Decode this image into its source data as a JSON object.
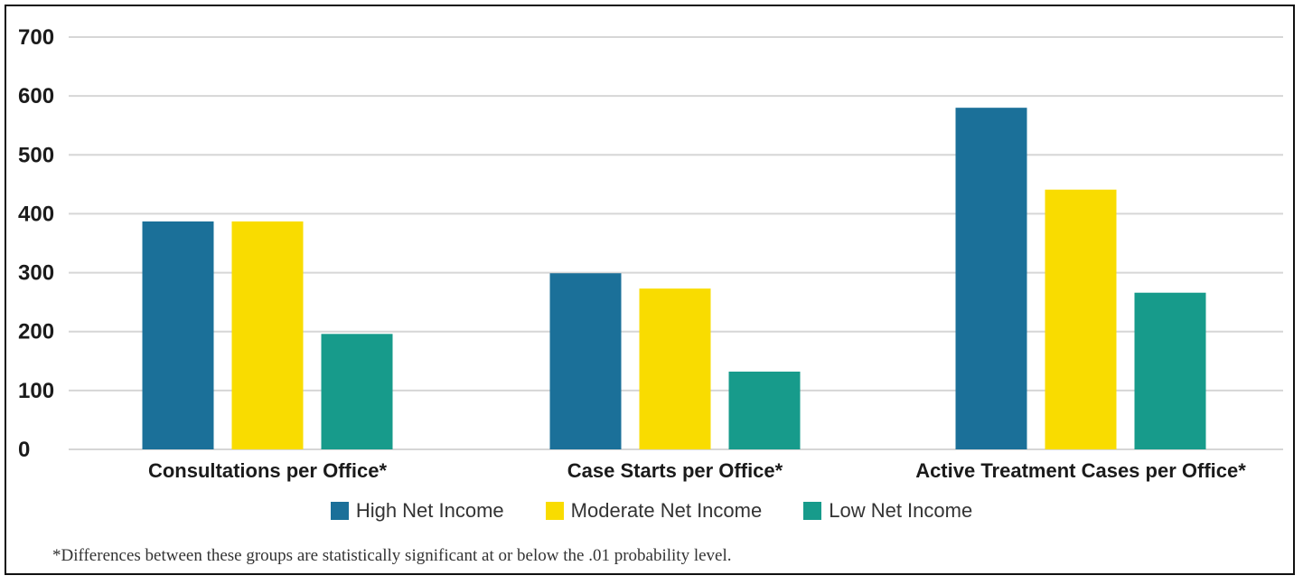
{
  "chart_data": {
    "type": "bar",
    "categories": [
      "Consultations per Office*",
      "Case Starts per Office*",
      "Active Treatment Cases per Office*"
    ],
    "series": [
      {
        "name": "High Net Income",
        "color": "#1b7099",
        "values": [
          387,
          299,
          580
        ]
      },
      {
        "name": "Moderate Net Income",
        "color": "#f9dc00",
        "values": [
          387,
          273,
          441
        ]
      },
      {
        "name": "Low Net Income",
        "color": "#179b8b",
        "values": [
          196,
          132,
          266
        ]
      }
    ],
    "ylim": [
      0,
      700
    ],
    "yticks": [
      "0",
      "100",
      "200",
      "300",
      "400",
      "500",
      "600",
      "700"
    ],
    "grid": true,
    "legend_position": "bottom",
    "footnote": "*Differences between these groups are statistically significant at or below the .01 probability level."
  }
}
